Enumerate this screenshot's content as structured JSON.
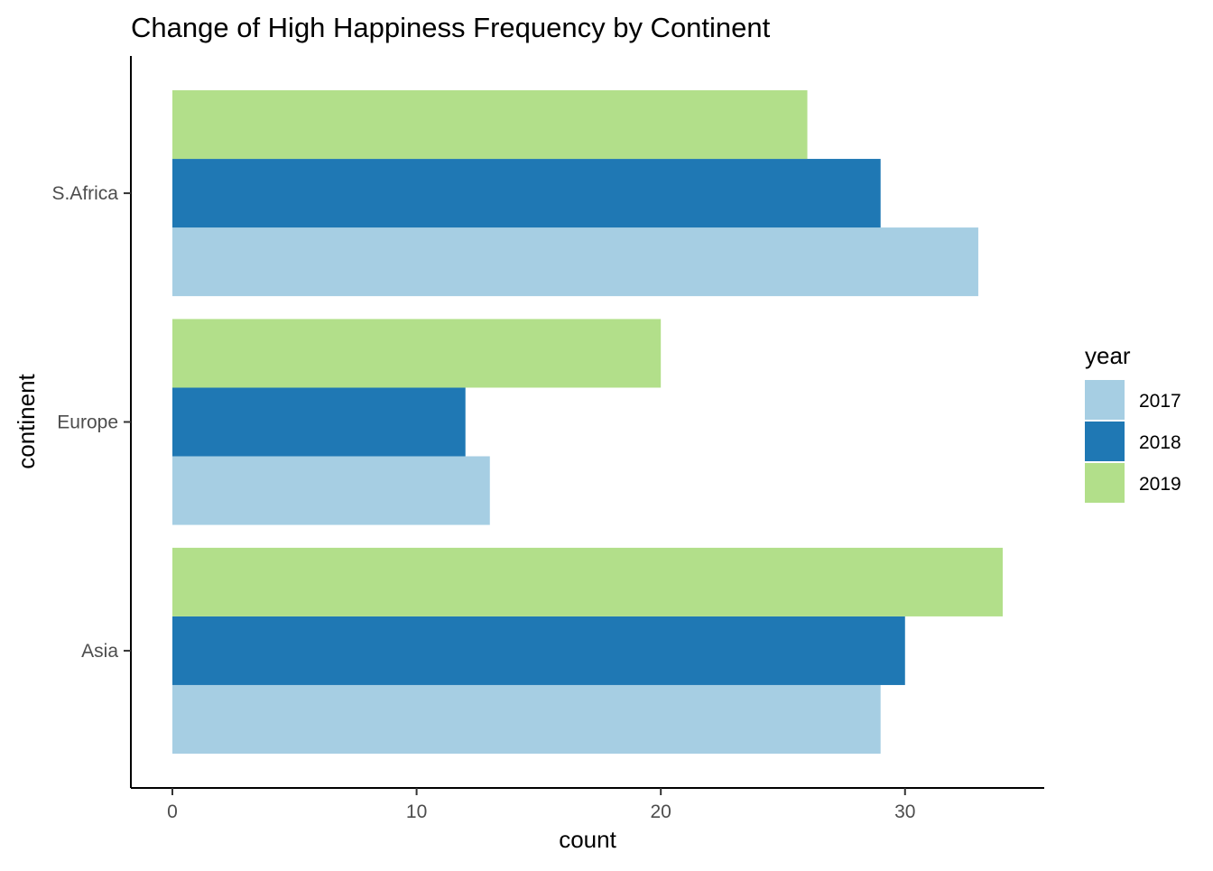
{
  "chart_data": {
    "type": "bar",
    "orientation": "horizontal",
    "title": "Change of High Happiness Frequency by Continent",
    "xlabel": "count",
    "ylabel": "continent",
    "categories": [
      "Asia",
      "Europe",
      "S.Africa"
    ],
    "series": [
      {
        "name": "2017",
        "color": "#A6CEE3",
        "values": [
          29,
          13,
          33
        ]
      },
      {
        "name": "2018",
        "color": "#1F78B4",
        "values": [
          30,
          12,
          29
        ]
      },
      {
        "name": "2019",
        "color": "#B2DF8A",
        "values": [
          34,
          20,
          26
        ]
      }
    ],
    "xlim": [
      -1.7,
      35.7
    ],
    "xticks": [
      0,
      10,
      20,
      30
    ],
    "grid": false,
    "legend": {
      "title": "year",
      "position": "right"
    }
  }
}
